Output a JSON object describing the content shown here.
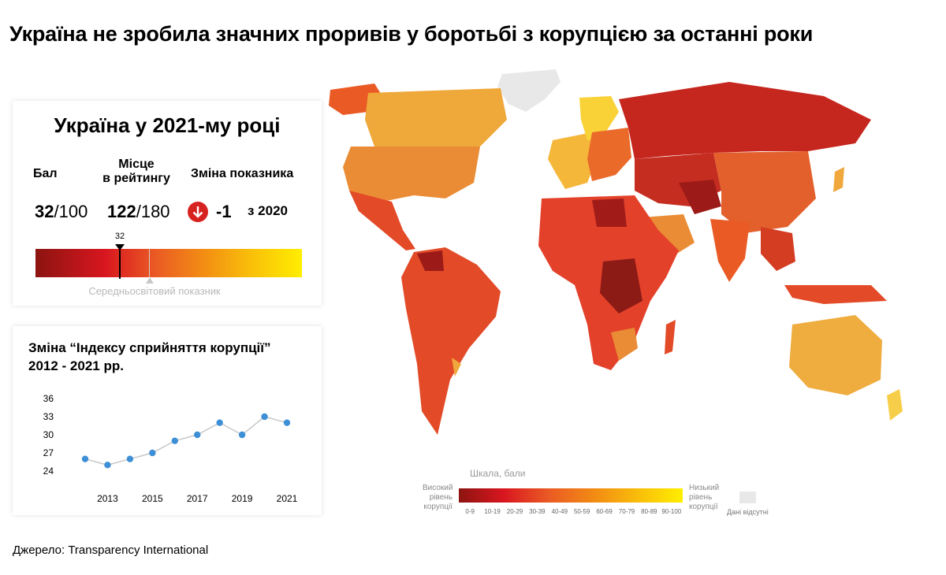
{
  "page_title": "Україна не зробила значних проривів у боротьбі з корупцією за останні роки",
  "ukraine_card": {
    "title": "Україна у 2021-му році",
    "score_label": "Бал",
    "score_value": "32",
    "score_denom": "/100",
    "rank_label_line1": "Місце",
    "rank_label_line2": "в рейтингу",
    "rank_value": "122",
    "rank_denom": "/180",
    "change_label": "Зміна показника",
    "change_value": "-1",
    "change_period": "з 2020",
    "change_icon": "arrow-down-icon",
    "scale_marker_value": "32",
    "ukraine_score_fraction": 0.32,
    "world_average_fraction": 0.43,
    "world_average_label": "Середньосвітовий показник"
  },
  "chart_data": {
    "type": "line",
    "title_line1": "Зміна “Індексу сприйняття корупції”",
    "title_line2": "2012 - 2021 рр.",
    "x": [
      2012,
      2013,
      2014,
      2015,
      2016,
      2017,
      2018,
      2019,
      2020,
      2021
    ],
    "values": [
      26,
      25,
      26,
      27,
      29,
      30,
      32,
      30,
      33,
      32
    ],
    "x_tick_labels": [
      "2013",
      "2015",
      "2017",
      "2019",
      "2021"
    ],
    "y_tick_labels": [
      "36",
      "33",
      "30",
      "27",
      "24"
    ],
    "ylim": [
      24,
      36
    ],
    "grid": false,
    "point_color": "#3d8fd6",
    "line_color": "#c8c8c8"
  },
  "legend": {
    "title": "Шкала, бали",
    "high_label": [
      "Високий",
      "рівень",
      "корупції"
    ],
    "low_label": [
      "Низький",
      "рівень",
      "корупції"
    ],
    "ticks": [
      "0-9",
      "10-19",
      "20-29",
      "30-39",
      "40-49",
      "50-59",
      "60-69",
      "70-79",
      "80-89",
      "90-100"
    ],
    "no_data_label": "Дані відсутні",
    "colors": [
      "#8c1411",
      "#d8161f",
      "#ea5a24",
      "#f28a14",
      "#f9bd0a",
      "#ffee00"
    ],
    "no_data_color": "#e8e8e8"
  },
  "source": "Джерело: Transparency International"
}
